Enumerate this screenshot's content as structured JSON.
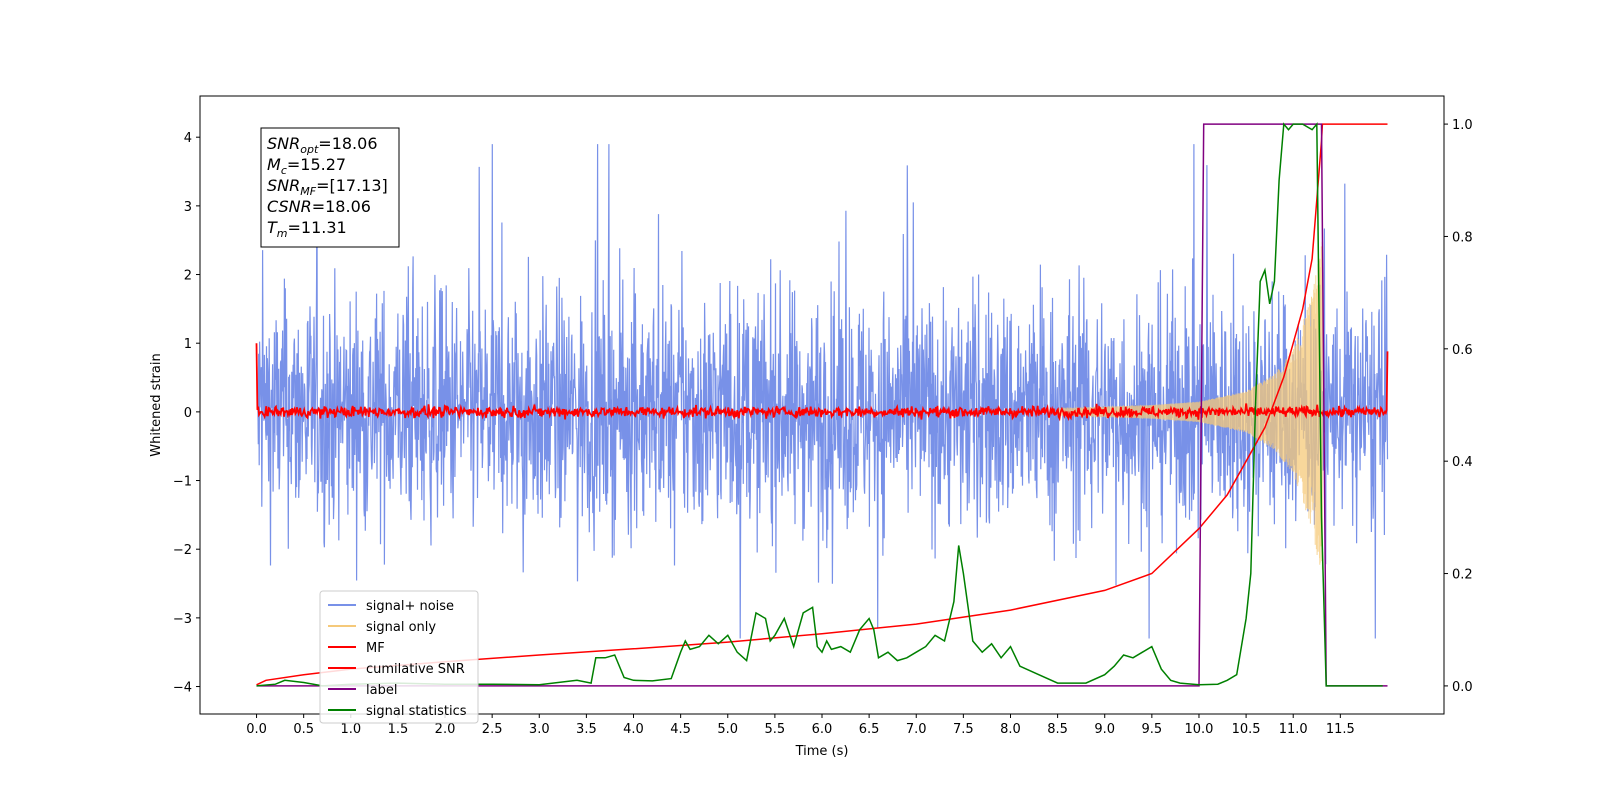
{
  "chart_data": {
    "type": "line",
    "title": "",
    "xlabel": "Time (s)",
    "ylabel": "Whitened strain",
    "xlim": [
      -0.6,
      12.6
    ],
    "ylim": [
      -4.4,
      4.6
    ],
    "y2lim": [
      -0.05,
      1.05
    ],
    "xticks": [
      0.0,
      0.5,
      1.0,
      1.5,
      2.0,
      2.5,
      3.0,
      3.5,
      4.0,
      4.5,
      5.0,
      5.5,
      6.0,
      6.5,
      7.0,
      7.5,
      8.0,
      8.5,
      9.0,
      9.5,
      10.0,
      10.5,
      11.0,
      11.5
    ],
    "xtick_labels": [
      "0.0",
      "0.5",
      "1.0",
      "1.5",
      "2.0",
      "2.5",
      "3.0",
      "3.5",
      "4.0",
      "4.5",
      "5.0",
      "5.5",
      "6.0",
      "6.5",
      "7.0",
      "7.5",
      "8.0",
      "8.5",
      "9.0",
      "9.5",
      "10.0",
      "10.5",
      "11.0",
      "11.5"
    ],
    "yticks": [
      -4,
      -3,
      -2,
      -1,
      0,
      1,
      2,
      3,
      4
    ],
    "ytick_labels": [
      "−4",
      "−3",
      "−2",
      "−1",
      "0",
      "1",
      "2",
      "3",
      "4"
    ],
    "y2ticks": [
      0.0,
      0.2,
      0.4,
      0.6,
      0.8,
      1.0
    ],
    "y2tick_labels": [
      "0.0",
      "0.2",
      "0.4",
      "0.6",
      "0.8",
      "1.0"
    ],
    "grid": false,
    "legend_position": "lower-left",
    "info_box": [
      {
        "sym": "SNR",
        "sub": "opt",
        "val": "=18.06"
      },
      {
        "sym": "M",
        "sub": "c",
        "val": "=15.27"
      },
      {
        "sym": "SNR",
        "sub": "MF",
        "val": "=[17.13]"
      },
      {
        "sym": "CSNR",
        "sub": "",
        "val": "=18.06"
      },
      {
        "sym": "T",
        "sub": "m",
        "val": "=11.31"
      }
    ],
    "series": [
      {
        "name": "signal+ noise",
        "color": "#7891e8",
        "axis": "left",
        "kind": "noise",
        "x_range": [
          0.0,
          12.0
        ],
        "amplitude_typical": 1.5,
        "amplitude_peak": 4.2
      },
      {
        "name": "signal only",
        "color": "#f5c97a",
        "axis": "left",
        "kind": "chirp",
        "x_range": [
          0.0,
          11.31
        ],
        "envelope": {
          "x": [
            8.5,
            9.5,
            10.0,
            10.5,
            10.8,
            11.0,
            11.2,
            11.31
          ],
          "y": [
            0.05,
            0.1,
            0.15,
            0.3,
            0.55,
            0.9,
            1.7,
            2.5
          ]
        }
      },
      {
        "name": "MF",
        "color": "#ff0000",
        "axis": "left",
        "kind": "noise",
        "x_range": [
          0.0,
          12.0
        ],
        "amplitude_typical": 0.05,
        "amplitude_peak": 0.17,
        "start_value": 1.0,
        "end_value": 0.88
      },
      {
        "name": "cumilative SNR",
        "color": "#ff0000",
        "axis": "right",
        "x": [
          0.0,
          0.1,
          0.5,
          1.0,
          2.0,
          3.0,
          4.0,
          5.0,
          6.0,
          7.0,
          8.0,
          9.0,
          9.5,
          10.0,
          10.3,
          10.5,
          10.7,
          10.9,
          11.0,
          11.1,
          11.2,
          11.3,
          11.31,
          12.0
        ],
        "values": [
          0.002,
          0.01,
          0.02,
          0.03,
          0.043,
          0.055,
          0.066,
          0.078,
          0.093,
          0.11,
          0.135,
          0.17,
          0.2,
          0.28,
          0.34,
          0.4,
          0.46,
          0.55,
          0.61,
          0.67,
          0.76,
          0.97,
          1.0,
          1.0
        ]
      },
      {
        "name": "label",
        "color": "#800080",
        "axis": "right",
        "x": [
          0.0,
          10.0,
          10.05,
          11.3,
          11.35,
          12.0
        ],
        "values": [
          0.0,
          0.0,
          1.0,
          1.0,
          0.0,
          0.0
        ]
      },
      {
        "name": "signal statistics",
        "color": "#008000",
        "axis": "right",
        "x": [
          0.0,
          0.2,
          0.3,
          0.5,
          0.7,
          1.0,
          1.5,
          2.0,
          2.5,
          3.0,
          3.2,
          3.4,
          3.55,
          3.6,
          3.7,
          3.8,
          3.9,
          4.0,
          4.2,
          4.4,
          4.5,
          4.55,
          4.6,
          4.7,
          4.8,
          4.9,
          5.0,
          5.1,
          5.2,
          5.3,
          5.4,
          5.45,
          5.5,
          5.6,
          5.7,
          5.8,
          5.9,
          5.95,
          6.0,
          6.05,
          6.1,
          6.2,
          6.3,
          6.4,
          6.5,
          6.55,
          6.6,
          6.7,
          6.8,
          6.9,
          7.0,
          7.1,
          7.2,
          7.3,
          7.4,
          7.45,
          7.5,
          7.6,
          7.7,
          7.8,
          7.9,
          8.0,
          8.1,
          8.3,
          8.5,
          8.8,
          9.0,
          9.1,
          9.2,
          9.3,
          9.4,
          9.5,
          9.6,
          9.7,
          9.8,
          10.0,
          10.2,
          10.3,
          10.4,
          10.5,
          10.55,
          10.6,
          10.65,
          10.7,
          10.75,
          10.8,
          10.85,
          10.9,
          10.95,
          11.0,
          11.1,
          11.2,
          11.25,
          11.3,
          11.35,
          11.5,
          11.7,
          11.95
        ],
        "values": [
          0.0,
          0.003,
          0.01,
          0.006,
          0.0,
          0.003,
          0.005,
          0.003,
          0.003,
          0.002,
          0.006,
          0.01,
          0.005,
          0.05,
          0.05,
          0.055,
          0.015,
          0.01,
          0.009,
          0.013,
          0.06,
          0.08,
          0.065,
          0.07,
          0.09,
          0.075,
          0.09,
          0.06,
          0.045,
          0.13,
          0.12,
          0.08,
          0.09,
          0.12,
          0.07,
          0.13,
          0.14,
          0.07,
          0.06,
          0.08,
          0.065,
          0.07,
          0.06,
          0.1,
          0.12,
          0.1,
          0.05,
          0.06,
          0.045,
          0.05,
          0.06,
          0.07,
          0.09,
          0.08,
          0.15,
          0.25,
          0.2,
          0.08,
          0.06,
          0.075,
          0.05,
          0.07,
          0.035,
          0.02,
          0.005,
          0.005,
          0.02,
          0.035,
          0.055,
          0.05,
          0.06,
          0.07,
          0.03,
          0.01,
          0.005,
          0.002,
          0.003,
          0.01,
          0.02,
          0.12,
          0.2,
          0.5,
          0.72,
          0.74,
          0.68,
          0.72,
          0.9,
          1.0,
          0.99,
          1.0,
          1.0,
          0.99,
          1.0,
          0.3,
          0.0,
          0.0,
          0.0,
          0.0
        ]
      }
    ]
  }
}
